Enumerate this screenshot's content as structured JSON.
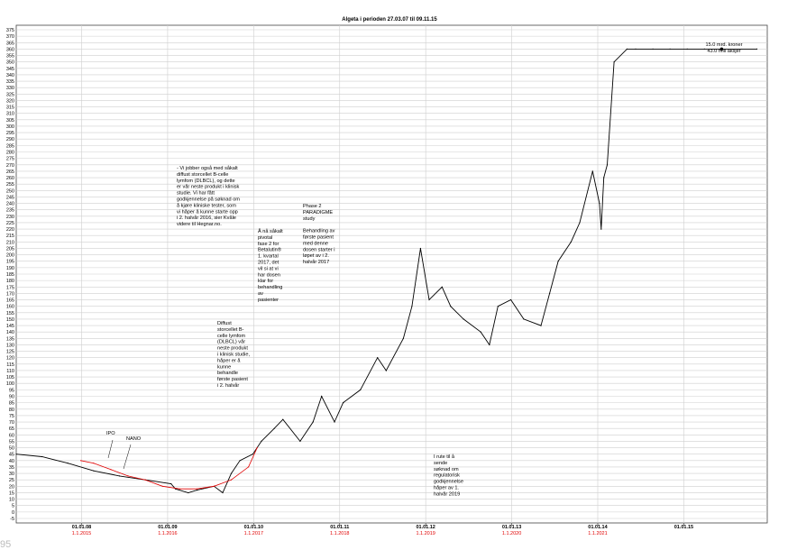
{
  "chart_data": {
    "type": "line",
    "title": "Algeta i perioden 27.03.07 til 09.11.15",
    "xlabel": "",
    "ylabel": "",
    "ylim": [
      -5,
      375
    ],
    "y_ticks": [
      375,
      370,
      365,
      360,
      355,
      350,
      345,
      340,
      335,
      330,
      325,
      320,
      315,
      310,
      305,
      300,
      295,
      290,
      285,
      280,
      275,
      270,
      265,
      260,
      255,
      250,
      245,
      240,
      235,
      230,
      225,
      220,
      215,
      210,
      205,
      200,
      195,
      190,
      185,
      180,
      175,
      170,
      165,
      160,
      155,
      150,
      145,
      140,
      135,
      130,
      125,
      120,
      115,
      110,
      105,
      100,
      95,
      90,
      85,
      80,
      75,
      70,
      65,
      60,
      55,
      50,
      45,
      40,
      35,
      30,
      25,
      20,
      15,
      10,
      5,
      0,
      -5
    ],
    "x_ticks_primary": [
      "01.01.08",
      "01.01.09",
      "01.01.10",
      "01.01.11",
      "01.01.12",
      "01.01.13",
      "01.01.14",
      "01.01.15"
    ],
    "x_ticks_secondary": [
      "1.1.2015",
      "1.1.2016",
      "1.1.2017",
      "1.1.2018",
      "1.1.2019",
      "1.1.2020",
      "1.1.2021"
    ],
    "grid": true,
    "series": [
      {
        "name": "",
        "color": "#000000",
        "x_unit": "years since 27.03.07",
        "x": [
          0,
          0.3,
          0.6,
          0.9,
          1.2,
          1.5,
          1.8,
          1.85,
          2.0,
          2.1,
          2.3,
          2.4,
          2.5,
          2.6,
          2.75,
          2.85,
          3.0,
          3.1,
          3.3,
          3.45,
          3.55,
          3.7,
          3.8,
          4.0,
          4.2,
          4.3,
          4.5,
          4.6,
          4.7,
          4.8,
          4.95,
          5.05,
          5.2,
          5.4,
          5.5,
          5.6,
          5.75,
          5.9,
          6.1,
          6.2,
          6.3,
          6.45,
          6.55,
          6.7,
          6.78,
          6.8,
          6.83,
          6.87,
          6.95,
          7.1,
          7.2,
          7.4,
          7.6,
          7.8,
          8.0,
          8.2,
          8.61
        ],
        "y": [
          45,
          43,
          38,
          32,
          28,
          25,
          22,
          18,
          15,
          17,
          20,
          15,
          30,
          40,
          45,
          55,
          65,
          72,
          55,
          70,
          90,
          70,
          85,
          95,
          120,
          110,
          135,
          160,
          205,
          165,
          175,
          160,
          150,
          140,
          130,
          160,
          165,
          150,
          145,
          170,
          195,
          210,
          225,
          265,
          240,
          220,
          260,
          270,
          350,
          360,
          360,
          360,
          360,
          360,
          360,
          360,
          360
        ]
      },
      {
        "name": "",
        "color": "#e00000",
        "x_unit": "years since 27.03.07",
        "x": [
          0.75,
          0.9,
          1.1,
          1.3,
          1.5,
          1.7,
          1.9,
          2.1,
          2.3,
          2.5,
          2.7,
          2.8
        ],
        "y": [
          40,
          38,
          33,
          28,
          25,
          20,
          18,
          18,
          20,
          25,
          35,
          50
        ]
      }
    ],
    "annotations": [
      {
        "id": "ipo",
        "lines": [
          "IPO"
        ]
      },
      {
        "id": "nano",
        "lines": [
          "NANO"
        ]
      },
      {
        "id": "dlbcl-1",
        "lines": [
          "- Vi jobber også med såkalt",
          "diffust storcellet B-celle",
          "lymfom (DLBCL), og dette",
          "er vår neste produkt i klinisk",
          "studie. Vi har fått",
          "godkjennelse på søknad om",
          "å kjøre kliniske tester, som",
          "vi håper å kunne starte opp",
          "i 2. halvår 2016, sier Kvåle",
          "videre til Hegnar.no."
        ]
      },
      {
        "id": "pivotal",
        "lines": [
          "Å nå såkalt",
          "pivotal",
          "fase 2 for",
          "Betalutin®",
          "1. kvartal",
          "2017, det",
          "vil si at vi",
          "har dosen",
          "klar for",
          "behandling",
          "av",
          "pasienter"
        ]
      },
      {
        "id": "paradigme",
        "lines": [
          "Phase 2",
          "PARADIGME",
          "study",
          "",
          "Behandling av",
          "første pasient",
          "med denne",
          "dosen starter i",
          "løpet av i 2.",
          "halvår 2017"
        ]
      },
      {
        "id": "dlbcl-2",
        "lines": [
          "Diffust",
          "storcellet B-",
          "celle lymfom",
          "(DLBCL) vår",
          "neste produkt",
          "i klinisk studie,",
          "håper er å",
          "kunne",
          "behandle",
          "første pasient",
          "i 2. halvår"
        ]
      },
      {
        "id": "regulatory",
        "lines": [
          "I rute til å",
          "sende",
          "søknad om",
          "regulatorisk",
          "godkjennelse",
          "håper av 1.",
          "halvår 2019"
        ]
      },
      {
        "id": "market-cap",
        "lines": [
          "15.0 mrd. kroner",
          "43.0 mill aksjer"
        ]
      }
    ],
    "corner_label": "95"
  }
}
